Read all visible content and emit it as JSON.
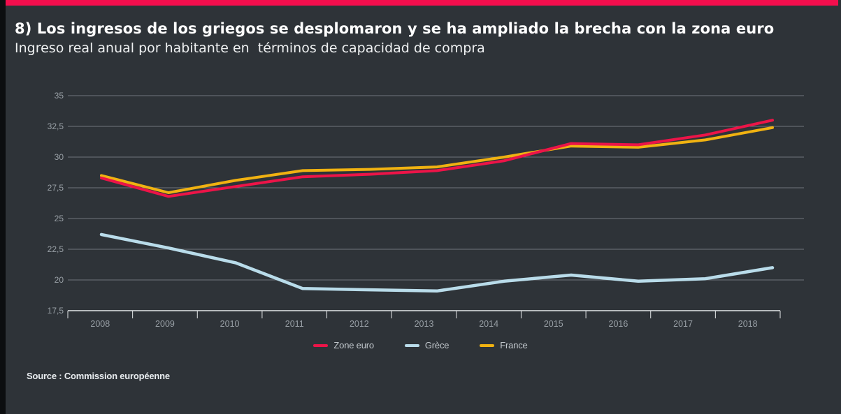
{
  "page": {
    "title": "8) Los ingresos de los griegos se desplomaron y se ha ampliado la brecha con la zona euro",
    "subtitle": "Ingreso real anual por habitante en  términos de capacidad de compra",
    "source": "Source : Commission européenne",
    "accent_bar_color": "#f30e4d",
    "background_color": "#2e3338"
  },
  "chart_data": {
    "type": "line",
    "title": "Ingreso real anual por habitante en términos de capacidad de compra",
    "x": [
      "2008",
      "2009",
      "2010",
      "2011",
      "2012",
      "2013",
      "2014",
      "2015",
      "2016",
      "2017",
      "2018"
    ],
    "series": [
      {
        "name": "Zone euro",
        "color": "#ec1448",
        "values": [
          28.3,
          26.8,
          27.6,
          28.4,
          28.6,
          28.9,
          29.7,
          31.1,
          31.0,
          31.8,
          33.0
        ]
      },
      {
        "name": "Grèce",
        "color": "#b9dcea",
        "values": [
          23.7,
          22.6,
          21.4,
          19.3,
          19.2,
          19.1,
          19.9,
          20.4,
          19.9,
          20.1,
          21.0
        ]
      },
      {
        "name": "France",
        "color": "#f0b211",
        "values": [
          28.5,
          27.1,
          28.1,
          28.9,
          29.0,
          29.2,
          30.0,
          30.9,
          30.8,
          31.4,
          32.4
        ]
      }
    ],
    "ylim": [
      17.5,
      35
    ],
    "ytick_step": 2.5,
    "ytick_labels": [
      "17,5",
      "20",
      "22,5",
      "25",
      "27,5",
      "30",
      "32,5",
      "35"
    ],
    "decimal_separator": ",",
    "grid": true,
    "legend_position": "bottom",
    "grid_color": "#70767c",
    "axis_color": "#e4e7e9",
    "tick_label_color": "#99a0a6"
  }
}
